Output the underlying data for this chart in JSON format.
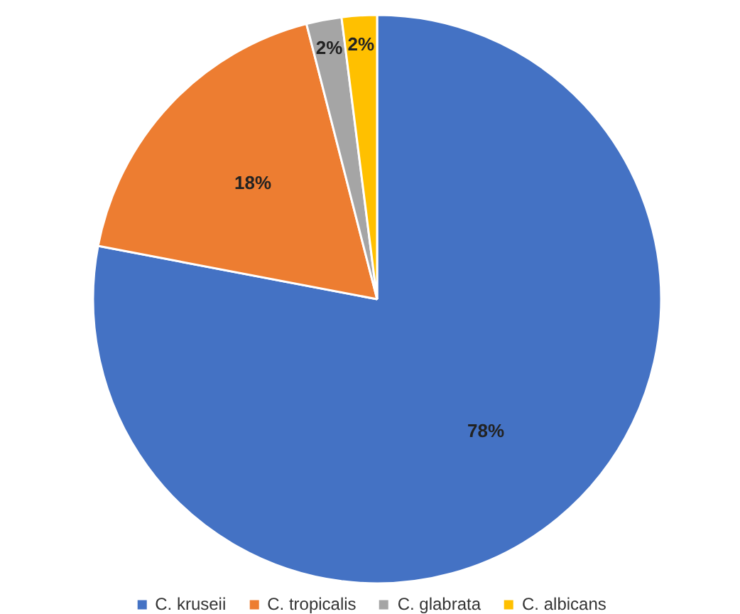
{
  "chart_data": {
    "type": "pie",
    "categories": [
      "C. kruseii",
      "C. tropicalis",
      "C. glabrata",
      "C. albicans"
    ],
    "values": [
      78,
      18,
      2,
      2
    ],
    "colors": [
      "#4472c4",
      "#ed7d31",
      "#a5a5a5",
      "#ffc000"
    ],
    "value_labels": [
      "78%",
      "18%",
      "2%",
      "2%"
    ],
    "legend": "bottom"
  }
}
